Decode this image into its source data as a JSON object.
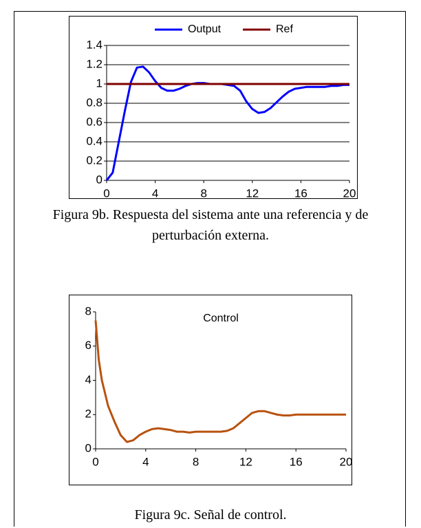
{
  "chart_data": [
    {
      "type": "line",
      "x": [
        0,
        0.5,
        1,
        1.5,
        2,
        2.5,
        3,
        3.5,
        4,
        4.5,
        5,
        5.5,
        6,
        6.5,
        7,
        7.5,
        8,
        8.5,
        9,
        9.5,
        10,
        10.5,
        11,
        11.5,
        12,
        12.5,
        13,
        13.5,
        14,
        14.5,
        15,
        15.5,
        16,
        16.5,
        17,
        17.5,
        18,
        18.5,
        19,
        19.5,
        20
      ],
      "series": [
        {
          "name": "Output",
          "color": "#0000ff",
          "values": [
            0,
            0.08,
            0.4,
            0.72,
            1.02,
            1.17,
            1.18,
            1.12,
            1.03,
            0.96,
            0.93,
            0.93,
            0.95,
            0.98,
            1.0,
            1.01,
            1.01,
            1.0,
            1.0,
            1.0,
            0.99,
            0.98,
            0.93,
            0.82,
            0.74,
            0.7,
            0.71,
            0.75,
            0.81,
            0.87,
            0.92,
            0.95,
            0.96,
            0.97,
            0.97,
            0.97,
            0.97,
            0.98,
            0.98,
            0.99,
            0.99
          ]
        },
        {
          "name": "Ref",
          "color": "#800000",
          "values": [
            1,
            1,
            1,
            1,
            1,
            1,
            1,
            1,
            1,
            1,
            1,
            1,
            1,
            1,
            1,
            1,
            1,
            1,
            1,
            1,
            1,
            1,
            1,
            1,
            1,
            1,
            1,
            1,
            1,
            1,
            1,
            1,
            1,
            1,
            1,
            1,
            1,
            1,
            1,
            1,
            1
          ]
        }
      ],
      "xlim": [
        0,
        20
      ],
      "xticks": [
        0,
        4,
        8,
        12,
        16,
        20
      ],
      "ylim": [
        0,
        1.4
      ],
      "yticks": [
        0,
        0.2,
        0.4,
        0.6,
        0.8,
        1,
        1.2,
        1.4
      ],
      "grid": true,
      "legend": "top"
    },
    {
      "type": "line",
      "title": "Control",
      "x": [
        0,
        0.25,
        0.5,
        1,
        1.5,
        2,
        2.5,
        3,
        3.5,
        4,
        4.5,
        5,
        5.5,
        6,
        6.5,
        7,
        7.5,
        8,
        8.5,
        9,
        9.5,
        10,
        10.5,
        11,
        11.5,
        12,
        12.5,
        13,
        13.5,
        14,
        14.5,
        15,
        15.5,
        16,
        16.5,
        17,
        17.5,
        18,
        18.5,
        19,
        19.5,
        20
      ],
      "series": [
        {
          "color": "#b8520f",
          "values": [
            7.5,
            5.2,
            4.0,
            2.5,
            1.6,
            0.8,
            0.4,
            0.5,
            0.8,
            1.0,
            1.15,
            1.2,
            1.15,
            1.1,
            1.0,
            1.0,
            0.95,
            1.0,
            1.0,
            1.0,
            1.0,
            1.0,
            1.05,
            1.2,
            1.5,
            1.8,
            2.1,
            2.2,
            2.2,
            2.1,
            2.0,
            1.95,
            1.95,
            2.0,
            2.0,
            2.0,
            2.0,
            2.0,
            2.0,
            2.0,
            2.0,
            2.0
          ]
        }
      ],
      "xlim": [
        0,
        20
      ],
      "xticks": [
        0,
        4,
        8,
        12,
        16,
        20
      ],
      "ylim": [
        0,
        8
      ],
      "yticks": [
        0,
        2,
        4,
        6,
        8
      ],
      "grid": false
    }
  ],
  "captions": [
    "Figura 9b. Respuesta del sistema ante una referencia y de perturbación externa.",
    "Figura 9c. Señal de control."
  ]
}
